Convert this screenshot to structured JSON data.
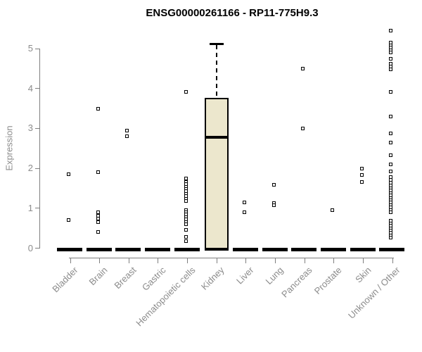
{
  "chart_data": {
    "type": "boxplot",
    "title": "ENSG00000261166 - RP11-775H9.3",
    "ylabel": "Expression",
    "xlabel": "",
    "yticks": [
      0,
      1,
      2,
      3,
      4,
      5
    ],
    "ylim": [
      0,
      5.6
    ],
    "grid": false,
    "legend": false,
    "categories": [
      "Bladder",
      "Brain",
      "Breast",
      "Gastric",
      "Hematopoietic cells",
      "Kidney",
      "Liver",
      "Lung",
      "Pancreas",
      "Prostate",
      "Skin",
      "Unknown / Other"
    ],
    "boxes": [
      {
        "label": "Bladder",
        "q1": 0,
        "median": 0,
        "q3": 0,
        "whisker_low": 0,
        "whisker_high": 0,
        "outliers": [
          1.85,
          0.7
        ]
      },
      {
        "label": "Brain",
        "q1": 0,
        "median": 0,
        "q3": 0,
        "whisker_low": 0,
        "whisker_high": 0,
        "outliers": [
          3.5,
          1.9,
          0.9,
          0.82,
          0.74,
          0.66,
          0.4
        ]
      },
      {
        "label": "Breast",
        "q1": 0,
        "median": 0,
        "q3": 0,
        "whisker_low": 0,
        "whisker_high": 0,
        "outliers": [
          2.95,
          2.8
        ]
      },
      {
        "label": "Gastric",
        "q1": 0,
        "median": 0,
        "q3": 0,
        "whisker_low": 0,
        "whisker_high": 0,
        "outliers": []
      },
      {
        "label": "Hematopoietic cells",
        "q1": 0,
        "median": 0,
        "q3": 0,
        "whisker_low": 0,
        "whisker_high": 0,
        "outliers": [
          3.92,
          1.75,
          1.66,
          1.6,
          1.54,
          1.48,
          1.42,
          1.36,
          1.3,
          1.24,
          1.18,
          0.96,
          0.9,
          0.84,
          0.78,
          0.72,
          0.66,
          0.6,
          0.45,
          0.28,
          0.17
        ]
      },
      {
        "label": "Kidney",
        "q1": 0,
        "median": 2.78,
        "q3": 3.77,
        "whisker_low": 0,
        "whisker_high": 5.11,
        "outliers": []
      },
      {
        "label": "Liver",
        "q1": 0,
        "median": 0,
        "q3": 0,
        "whisker_low": 0,
        "whisker_high": 0,
        "outliers": [
          1.15,
          0.9
        ]
      },
      {
        "label": "Lung",
        "q1": 0,
        "median": 0,
        "q3": 0,
        "whisker_low": 0,
        "whisker_high": 0,
        "outliers": [
          1.58,
          1.12,
          1.07
        ]
      },
      {
        "label": "Pancreas",
        "q1": 0,
        "median": 0,
        "q3": 0,
        "whisker_low": 0,
        "whisker_high": 0,
        "outliers": [
          4.5,
          3.0
        ]
      },
      {
        "label": "Prostate",
        "q1": 0,
        "median": 0,
        "q3": 0,
        "whisker_low": 0,
        "whisker_high": 0,
        "outliers": [
          0.95
        ]
      },
      {
        "label": "Skin",
        "q1": 0,
        "median": 0,
        "q3": 0,
        "whisker_low": 0,
        "whisker_high": 0,
        "outliers": [
          2.0,
          1.83,
          1.65
        ]
      },
      {
        "label": "Unknown / Other",
        "q1": 0,
        "median": 0,
        "q3": 0,
        "whisker_low": 0,
        "whisker_high": 0,
        "outliers": [
          5.45,
          5.15,
          5.08,
          5.02,
          4.96,
          4.9,
          4.75,
          4.62,
          4.55,
          4.48,
          3.92,
          3.3,
          2.87,
          2.64,
          2.32,
          2.1,
          1.93,
          1.78,
          1.71,
          1.64,
          1.57,
          1.5,
          1.44,
          1.38,
          1.32,
          1.26,
          1.2,
          1.14,
          1.08,
          1.02,
          0.96,
          0.9,
          0.68,
          0.62,
          0.56,
          0.5,
          0.44,
          0.38,
          0.32,
          0.27
        ]
      }
    ],
    "colors": {
      "box_fill": "#ece7cd",
      "box_border": "#000000",
      "zero_bar": "#000000",
      "axis": "#7f7f7f",
      "label_text": "#8c8c8c",
      "title_text": "#000000",
      "background": "#ffffff"
    }
  }
}
